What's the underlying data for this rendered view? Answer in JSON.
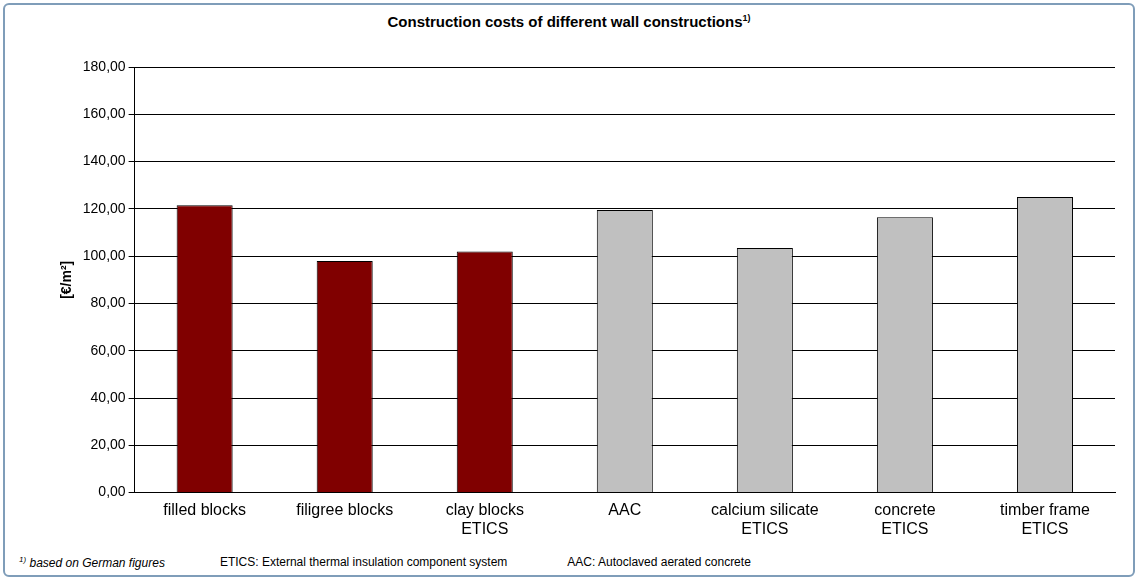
{
  "chart_data": {
    "type": "bar",
    "title": "Construction costs of different wall constructions",
    "footnote_mark": "1)",
    "y_label": "[€/m²]",
    "categories": [
      "filled blocks",
      "filigree blocks",
      [
        "clay blocks",
        "ETICS"
      ],
      "AAC",
      [
        "calcium silicate",
        "ETICS"
      ],
      [
        "concrete",
        "ETICS"
      ],
      [
        "timber frame",
        "ETICS"
      ]
    ],
    "values": [
      121.5,
      98,
      102,
      119.5,
      103.5,
      116.5,
      125
    ],
    "colors": [
      "#800000",
      "#800000",
      "#800000",
      "#c0c0c0",
      "#c0c0c0",
      "#c0c0c0",
      "#c0c0c0"
    ],
    "ylim": [
      0,
      180
    ],
    "yticks": [
      {
        "value": 0,
        "label": "0,00"
      },
      {
        "value": 20,
        "label": "20,00"
      },
      {
        "value": 40,
        "label": "40,00"
      },
      {
        "value": 60,
        "label": "60,00"
      },
      {
        "value": 80,
        "label": "80,00"
      },
      {
        "value": 100,
        "label": "100,00"
      },
      {
        "value": 120,
        "label": "120,00"
      },
      {
        "value": 140,
        "label": "140,00"
      },
      {
        "value": 160,
        "label": "160,00"
      },
      {
        "value": 180,
        "label": "180,00"
      }
    ],
    "grid": true,
    "annotations": [
      "based on German figures",
      "ETICS: External thermal insulation component system",
      "AAC: Autoclaved aerated concrete"
    ]
  }
}
